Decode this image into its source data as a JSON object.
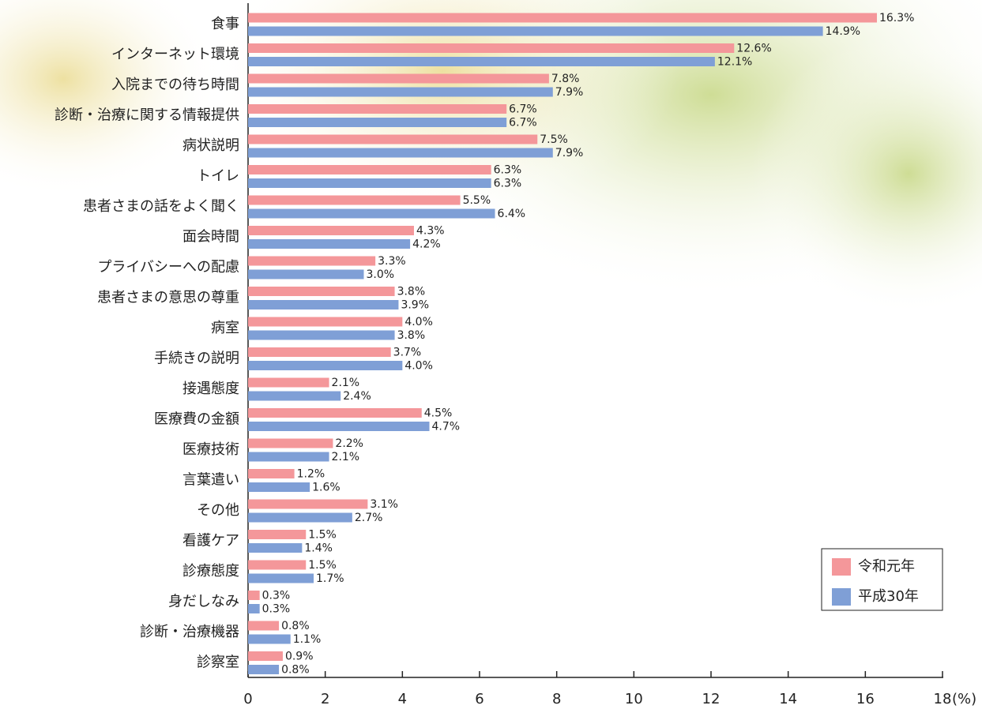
{
  "chart_data": {
    "type": "bar",
    "orientation": "horizontal",
    "categories": [
      "食事",
      "インターネット環境",
      "入院までの待ち時間",
      "診断・治療に関する情報提供",
      "病状説明",
      "トイレ",
      "患者さまの話をよく聞く",
      "面会時間",
      "プライバシーへの配慮",
      "患者さまの意思の尊重",
      "病室",
      "手続きの説明",
      "接遇態度",
      "医療費の金額",
      "医療技術",
      "言葉遣い",
      "その他",
      "看護ケア",
      "診療態度",
      "身だしなみ",
      "診断・治療機器",
      "診察室"
    ],
    "series": [
      {
        "name": "令和元年",
        "color": "#f4979a",
        "values": [
          16.3,
          12.6,
          7.8,
          6.7,
          7.5,
          6.3,
          5.5,
          4.3,
          3.3,
          3.8,
          4.0,
          3.7,
          2.1,
          4.5,
          2.2,
          1.2,
          3.1,
          1.5,
          1.5,
          0.3,
          0.8,
          0.9
        ],
        "value_labels": [
          "16.3%",
          "12.6%",
          "7.8%",
          "6.7%",
          "7.5%",
          "6.3%",
          "5.5%",
          "4.3%",
          "3.3%",
          "3.8%",
          "4.0%",
          "3.7%",
          "2.1%",
          "4.5%",
          "2.2%",
          "1.2%",
          "3.1%",
          "1.5%",
          "1.5%",
          "0.3%",
          "0.8%",
          "0.9%"
        ]
      },
      {
        "name": "平成30年",
        "color": "#7f9fd6",
        "values": [
          14.9,
          12.1,
          7.9,
          6.7,
          7.9,
          6.3,
          6.4,
          4.2,
          3.0,
          3.9,
          3.8,
          4.0,
          2.4,
          4.7,
          2.1,
          1.6,
          2.7,
          1.4,
          1.7,
          0.3,
          1.1,
          0.8
        ],
        "value_labels": [
          "14.9%",
          "12.1%",
          "7.9%",
          "6.7%",
          "7.9%",
          "6.3%",
          "6.4%",
          "4.2%",
          "3.0%",
          "3.9%",
          "3.8%",
          "4.0%",
          "2.4%",
          "4.7%",
          "2.1%",
          "1.6%",
          "2.7%",
          "1.4%",
          "1.7%",
          "0.3%",
          "1.1%",
          "0.8%"
        ]
      }
    ],
    "xlabel": "(%)",
    "xlim": [
      0,
      18
    ],
    "xticks": [
      0,
      2,
      4,
      6,
      8,
      10,
      12,
      14,
      16,
      18
    ],
    "legend": "lower-right"
  }
}
